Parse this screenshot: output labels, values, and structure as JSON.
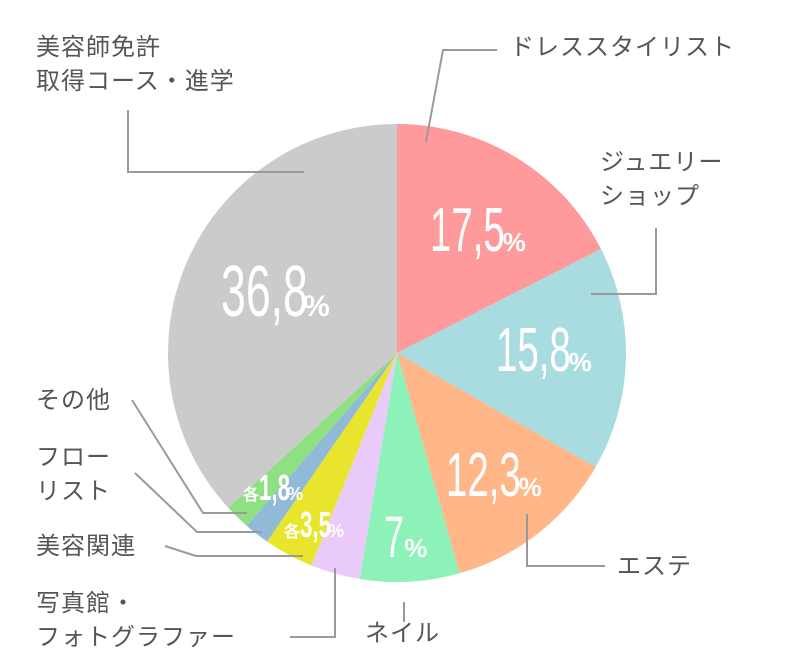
{
  "chart_data": {
    "type": "pie",
    "title": "",
    "start_angle_deg": 0,
    "direction": "clockwise",
    "categories": [
      "ドレススタイリスト",
      "ジュエリーショップ",
      "エステ",
      "ネイル",
      "写真館・フォトグラファー",
      "美容関連",
      "フローリスト",
      "その他",
      "美容師免許取得コース・進学"
    ],
    "values": [
      17.5,
      15.8,
      12.3,
      7,
      3.5,
      3.5,
      1.8,
      1.8,
      36.8
    ],
    "colors": [
      "#fe9a9c",
      "#a8dce0",
      "#ffb688",
      "#8cf2b7",
      "#eac9fb",
      "#e9e52c",
      "#91bad9",
      "#8fe083",
      "#cbcbcb"
    ],
    "value_labels": [
      "17,5%",
      "15,8%",
      "12,3%",
      "7%",
      "各3,5%",
      "各3,5%",
      "各1,8%",
      "各1,8%",
      "36,8%"
    ],
    "legend_position": "callouts"
  },
  "labels": {
    "dress": "ドレススタイリスト",
    "jewelry": "ジュエリー\nショップ",
    "este": "エステ",
    "nail": "ネイル",
    "photo": "写真館・\nフォトグラファー",
    "beauty": "美容関連",
    "florist": "フロー\nリスト",
    "other": "その他",
    "school": "美容師免許\n取得コース・進学"
  },
  "values": {
    "dress": {
      "num": "17,5",
      "pct": "%"
    },
    "jewelry": {
      "num": "15,8",
      "pct": "%"
    },
    "este": {
      "num": "12,3",
      "pct": "%"
    },
    "nail": {
      "num": "7",
      "pct": "%"
    },
    "pair35": {
      "pre": "各",
      "num": "3,5",
      "pct": "%"
    },
    "pair18": {
      "pre": "各",
      "num": "1,8",
      "pct": "%"
    },
    "school": {
      "num": "36,8",
      "pct": "%"
    }
  }
}
